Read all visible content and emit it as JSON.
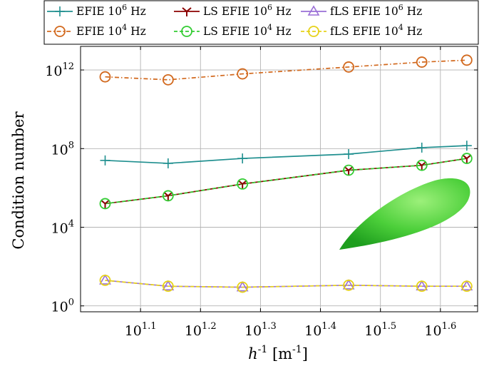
{
  "chart_data": {
    "type": "line",
    "xlabel": "h^{-1} [m^{-1}]",
    "ylabel": "Condition number",
    "x_scale": "log",
    "y_scale": "log",
    "xlim": [
      1.0,
      1.662
    ],
    "ylim": [
      -0.3,
      13.2
    ],
    "grid": true,
    "x_ticks": [
      1.1,
      1.2,
      1.3,
      1.4,
      1.5,
      1.6
    ],
    "y_ticks": [
      0,
      4,
      8,
      12
    ],
    "x_tick_labels": [
      "10^1.1",
      "10^1.2",
      "10^1.3",
      "10^1.4",
      "10^1.5",
      "10^1.6"
    ],
    "y_tick_labels": [
      "10^0",
      "10^4",
      "10^8",
      "10^12"
    ],
    "legend_position": "top",
    "x": [
      1.041,
      1.146,
      1.27,
      1.447,
      1.569,
      1.644
    ],
    "series": [
      {
        "name": "EFIE 10^6 Hz",
        "color": "#1f8f8f",
        "marker": "plus",
        "dash": "solid",
        "log_values": [
          7.4,
          7.25,
          7.5,
          7.72,
          8.05,
          8.15
        ]
      },
      {
        "name": "LS EFIE 10^6 Hz",
        "color": "#8b0000",
        "marker": "tri-down",
        "dash": "solid",
        "log_values": [
          5.2,
          5.6,
          6.2,
          6.9,
          7.15,
          7.5
        ]
      },
      {
        "name": "fLS EFIE 10^6 Hz",
        "color": "#9a6fd6",
        "marker": "triangle",
        "dash": "solid",
        "log_values": [
          1.3,
          1.0,
          0.95,
          1.05,
          1.0,
          1.0
        ]
      },
      {
        "name": "EFIE 10^4 Hz",
        "color": "#d2691e",
        "marker": "circle",
        "dash": "dashdot",
        "log_values": [
          11.65,
          11.5,
          11.8,
          12.15,
          12.4,
          12.5
        ]
      },
      {
        "name": "LS EFIE 10^4 Hz",
        "color": "#33cc33",
        "marker": "circle",
        "dash": "dashed",
        "log_values": [
          5.2,
          5.6,
          6.2,
          6.9,
          7.15,
          7.5
        ]
      },
      {
        "name": "fLS EFIE 10^4 Hz",
        "color": "#e6d21a",
        "marker": "circle",
        "dash": "dashed",
        "log_values": [
          1.3,
          1.0,
          0.95,
          1.05,
          1.0,
          1.0
        ]
      }
    ],
    "legend": {
      "rows": [
        [
          "EFIE 10^6 Hz",
          "LS EFIE 10^6 Hz",
          "fLS EFIE 10^6 Hz"
        ],
        [
          "EFIE 10^4 Hz",
          "LS EFIE 10^4 Hz",
          "fLS EFIE 10^4 Hz"
        ]
      ]
    },
    "inset_image": "green-ellipsoid"
  },
  "colors": {
    "grid": "#b3b3b3",
    "ellipsoid_light": "#9cf07a",
    "ellipsoid_dark": "#1e9e1e"
  }
}
